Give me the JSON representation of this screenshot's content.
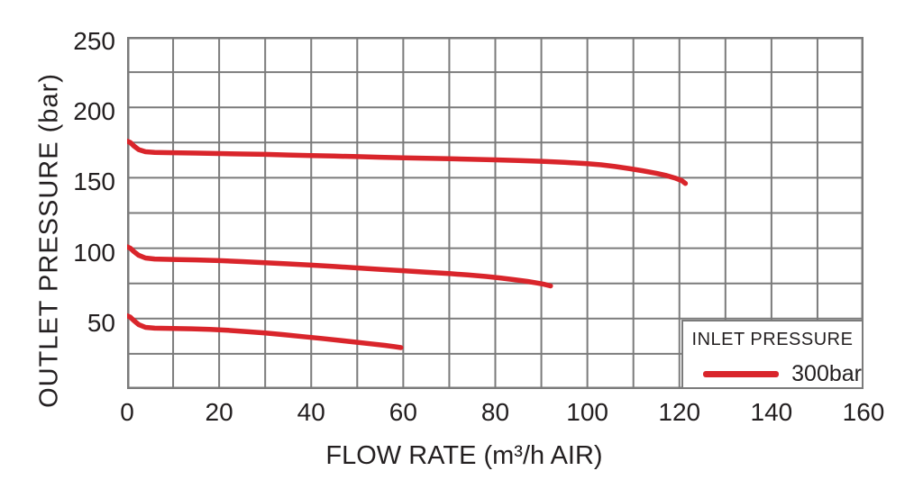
{
  "chart_data": {
    "type": "line",
    "title": "",
    "xlabel": "FLOW RATE (m³/h AIR)",
    "ylabel": "OUTLET PRESSURE (bar)",
    "xlim": [
      0,
      160
    ],
    "ylim": [
      0,
      250
    ],
    "x_ticks": [
      0,
      20,
      40,
      60,
      80,
      100,
      120,
      140,
      160
    ],
    "y_ticks": [
      50,
      100,
      150,
      200,
      250
    ],
    "x_minor_step": 10,
    "y_minor_step": 25,
    "grid": true,
    "legend": {
      "title": "INLET PRESSURE",
      "position": "bottom-right",
      "entries": [
        {
          "label": "300bar",
          "color": "#d9252b"
        }
      ]
    },
    "series": [
      {
        "label": "300bar",
        "color": "#d9252b",
        "curves": [
          [
            [
              0,
              176
            ],
            [
              0.7,
              175
            ],
            [
              1.5,
              172.5
            ],
            [
              2.5,
              170
            ],
            [
              4,
              168.5
            ],
            [
              6,
              168
            ],
            [
              10,
              167.8
            ],
            [
              15,
              167.5
            ],
            [
              20,
              167.2
            ],
            [
              25,
              166.9
            ],
            [
              30,
              166.6
            ],
            [
              35,
              166.2
            ],
            [
              40,
              165.8
            ],
            [
              45,
              165.4
            ],
            [
              50,
              165
            ],
            [
              55,
              164.6
            ],
            [
              60,
              164.2
            ],
            [
              65,
              163.8
            ],
            [
              70,
              163.5
            ],
            [
              75,
              163.1
            ],
            [
              80,
              162.7
            ],
            [
              85,
              162.2
            ],
            [
              90,
              161.7
            ],
            [
              95,
              161
            ],
            [
              100,
              160
            ],
            [
              103,
              159.2
            ],
            [
              106,
              158
            ],
            [
              109,
              156.6
            ],
            [
              112,
              155
            ],
            [
              115,
              153.2
            ],
            [
              117,
              151.7
            ],
            [
              119,
              149.9
            ],
            [
              120.5,
              148
            ],
            [
              121.3,
              146
            ]
          ],
          [
            [
              0,
              101
            ],
            [
              0.7,
              100
            ],
            [
              1.5,
              97.5
            ],
            [
              2.5,
              95
            ],
            [
              4,
              93
            ],
            [
              6,
              92.3
            ],
            [
              10,
              92
            ],
            [
              15,
              91.7
            ],
            [
              20,
              91.2
            ],
            [
              25,
              90.5
            ],
            [
              30,
              89.7
            ],
            [
              35,
              88.9
            ],
            [
              40,
              88
            ],
            [
              45,
              87
            ],
            [
              50,
              86
            ],
            [
              55,
              85
            ],
            [
              60,
              84
            ],
            [
              65,
              83
            ],
            [
              70,
              82
            ],
            [
              74,
              81
            ],
            [
              78,
              79.9
            ],
            [
              81,
              78.9
            ],
            [
              84,
              77.7
            ],
            [
              87,
              76.4
            ],
            [
              89,
              75.3
            ],
            [
              90.5,
              74.4
            ],
            [
              92,
              73.2
            ]
          ],
          [
            [
              0,
              52
            ],
            [
              0.7,
              51
            ],
            [
              1.5,
              48.5
            ],
            [
              2.5,
              45.8
            ],
            [
              4,
              43.8
            ],
            [
              6,
              43.2
            ],
            [
              10,
              43
            ],
            [
              14,
              42.8
            ],
            [
              18,
              42.3
            ],
            [
              22,
              41.7
            ],
            [
              26,
              40.8
            ],
            [
              30,
              39.8
            ],
            [
              34,
              38.6
            ],
            [
              38,
              37.3
            ],
            [
              42,
              36
            ],
            [
              46,
              34.6
            ],
            [
              50,
              33.2
            ],
            [
              53,
              32.1
            ],
            [
              56,
              31
            ],
            [
              58,
              30.1
            ],
            [
              59.5,
              29.4
            ]
          ]
        ]
      }
    ]
  },
  "colors": {
    "background": "#ffffff",
    "grid": "#7b7b7b",
    "curve": "#d9252b",
    "text": "#231f20"
  }
}
